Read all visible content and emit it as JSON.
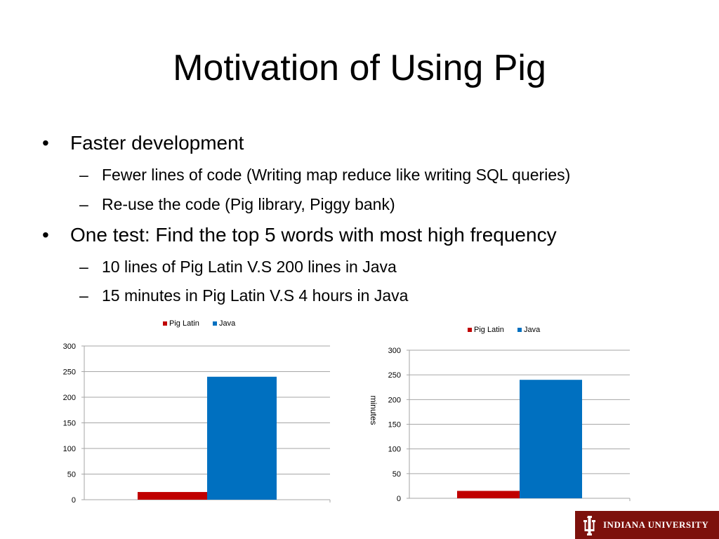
{
  "slide": {
    "title": "Motivation of Using Pig",
    "bullets": [
      {
        "text": "Faster development",
        "sub": [
          "Fewer lines of code (Writing map reduce like writing SQL queries)",
          "Re-use the code (Pig library, Piggy bank)"
        ]
      },
      {
        "text": "One test: Find the top 5 words with most high frequency",
        "sub": [
          "10 lines of Pig Latin V.S 200 lines in Java",
          "15 minutes in Pig Latin V.S 4 hours in Java"
        ]
      }
    ]
  },
  "logo": {
    "text": "INDIANA UNIVERSITY",
    "colors": {
      "background": "#7d110c",
      "foreground": "#ffffff"
    }
  },
  "chart_data": [
    {
      "type": "bar",
      "categories": [
        ""
      ],
      "series": [
        {
          "name": "Pig Latin",
          "values": [
            15
          ],
          "color": "#c00000"
        },
        {
          "name": "Java",
          "values": [
            240
          ],
          "color": "#0070c0"
        }
      ],
      "ylabel": "",
      "ylim": [
        0,
        300
      ],
      "yticks": [
        0,
        50,
        100,
        150,
        200,
        250,
        300
      ],
      "grid": true,
      "legend": "top"
    },
    {
      "type": "bar",
      "categories": [
        ""
      ],
      "series": [
        {
          "name": "Pig Latin",
          "values": [
            15
          ],
          "color": "#c00000"
        },
        {
          "name": "Java",
          "values": [
            240
          ],
          "color": "#0070c0"
        }
      ],
      "ylabel": "minutes",
      "ylim": [
        0,
        300
      ],
      "yticks": [
        0,
        50,
        100,
        150,
        200,
        250,
        300
      ],
      "grid": true,
      "legend": "top"
    }
  ]
}
